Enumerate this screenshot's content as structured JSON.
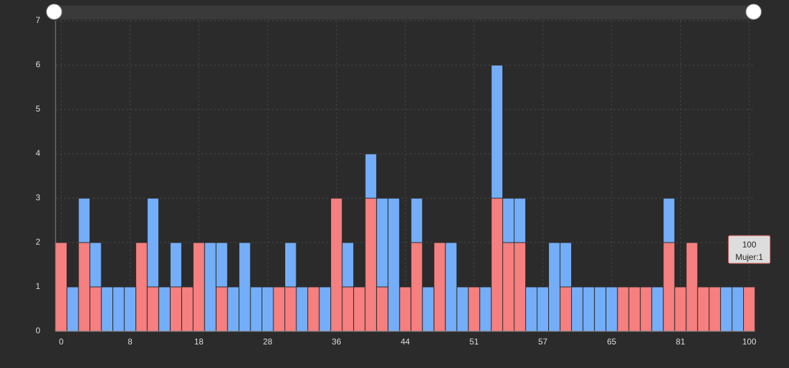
{
  "chart_data": {
    "type": "bar",
    "stacked": true,
    "categories": [
      "0",
      null,
      null,
      null,
      null,
      null,
      "8",
      null,
      null,
      null,
      null,
      null,
      "18",
      null,
      null,
      null,
      null,
      null,
      "28",
      null,
      null,
      null,
      null,
      null,
      "36",
      null,
      null,
      null,
      null,
      null,
      "44",
      null,
      null,
      null,
      null,
      null,
      "51",
      null,
      null,
      null,
      null,
      null,
      "57",
      null,
      null,
      null,
      null,
      null,
      "65",
      null,
      null,
      null,
      null,
      null,
      "81",
      null,
      null,
      null,
      null,
      null,
      "100"
    ],
    "series": [
      {
        "name": "Mujer",
        "color": "#f67f7f",
        "values": [
          2,
          0,
          2,
          1,
          0,
          0,
          0,
          2,
          1,
          0,
          1,
          1,
          2,
          0,
          1,
          0,
          0,
          0,
          0,
          1,
          1,
          0,
          1,
          0,
          3,
          1,
          1,
          3,
          1,
          0,
          1,
          2,
          0,
          2,
          0,
          0,
          1,
          0,
          3,
          2,
          2,
          0,
          0,
          0,
          1,
          0,
          0,
          0,
          0,
          1,
          1,
          1,
          0,
          2,
          1,
          2,
          1,
          1,
          0,
          0,
          1
        ]
      },
      {
        "color": "#74aef8",
        "values": [
          0,
          1,
          1,
          1,
          1,
          1,
          1,
          0,
          2,
          1,
          1,
          0,
          0,
          2,
          1,
          1,
          2,
          1,
          1,
          0,
          1,
          1,
          0,
          1,
          0,
          1,
          0,
          1,
          2,
          3,
          0,
          1,
          1,
          0,
          2,
          1,
          0,
          1,
          3,
          1,
          1,
          1,
          1,
          2,
          1,
          1,
          1,
          1,
          1,
          0,
          0,
          0,
          1,
          1,
          0,
          0,
          0,
          0,
          1,
          1,
          0
        ]
      }
    ],
    "ylim": [
      0,
      7
    ],
    "yticks": [
      0,
      1,
      2,
      3,
      4,
      5,
      6,
      7
    ],
    "grid": true,
    "tooltip": {
      "title": "100",
      "text": "Mujer:1",
      "category_index": 60
    }
  }
}
